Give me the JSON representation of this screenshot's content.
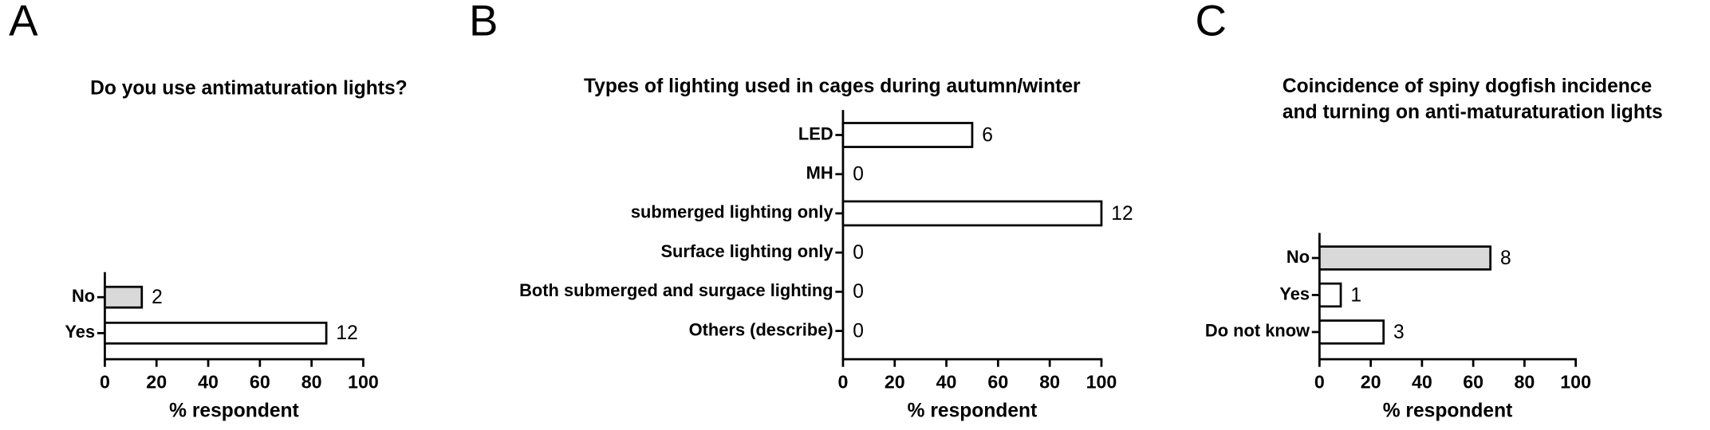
{
  "chart_data": [
    {
      "type": "bar",
      "panel_label": "A",
      "title": [
        "Do you use antimaturation lights?"
      ],
      "categories": [
        "No",
        "Yes"
      ],
      "values": [
        14.3,
        85.7
      ],
      "counts": [
        2,
        12
      ],
      "colors": [
        "#d9d9d9",
        "#ffffff"
      ],
      "xlabel": "% respondent",
      "xlim": [
        0,
        100
      ],
      "xticks": [
        0,
        20,
        40,
        60,
        80,
        100
      ]
    },
    {
      "type": "bar",
      "panel_label": "B",
      "title": [
        "Types of lighting used in cages during autumn/winter"
      ],
      "categories": [
        "LED",
        "MH",
        "submerged lighting only",
        "Surface lighting only",
        "Both submerged and surgace lighting",
        "Others (describe)"
      ],
      "values": [
        50,
        0,
        100,
        0,
        0,
        0
      ],
      "counts": [
        6,
        0,
        12,
        0,
        0,
        0
      ],
      "colors": [
        "#ffffff",
        "#ffffff",
        "#ffffff",
        "#ffffff",
        "#ffffff",
        "#ffffff"
      ],
      "xlabel": "% respondent",
      "xlim": [
        0,
        100
      ],
      "xticks": [
        0,
        20,
        40,
        60,
        80,
        100
      ]
    },
    {
      "type": "bar",
      "panel_label": "C",
      "title": [
        "Coincidence of spiny dogfish incidence",
        "and turning on anti-maturaturation lights"
      ],
      "categories": [
        "No",
        "Yes",
        "Do not know"
      ],
      "values": [
        66.7,
        8.3,
        25
      ],
      "counts": [
        8,
        1,
        3
      ],
      "colors": [
        "#d9d9d9",
        "#ffffff",
        "#ffffff"
      ],
      "xlabel": "% respondent",
      "xlim": [
        0,
        100
      ],
      "xticks": [
        0,
        20,
        40,
        60,
        80,
        100
      ]
    }
  ]
}
